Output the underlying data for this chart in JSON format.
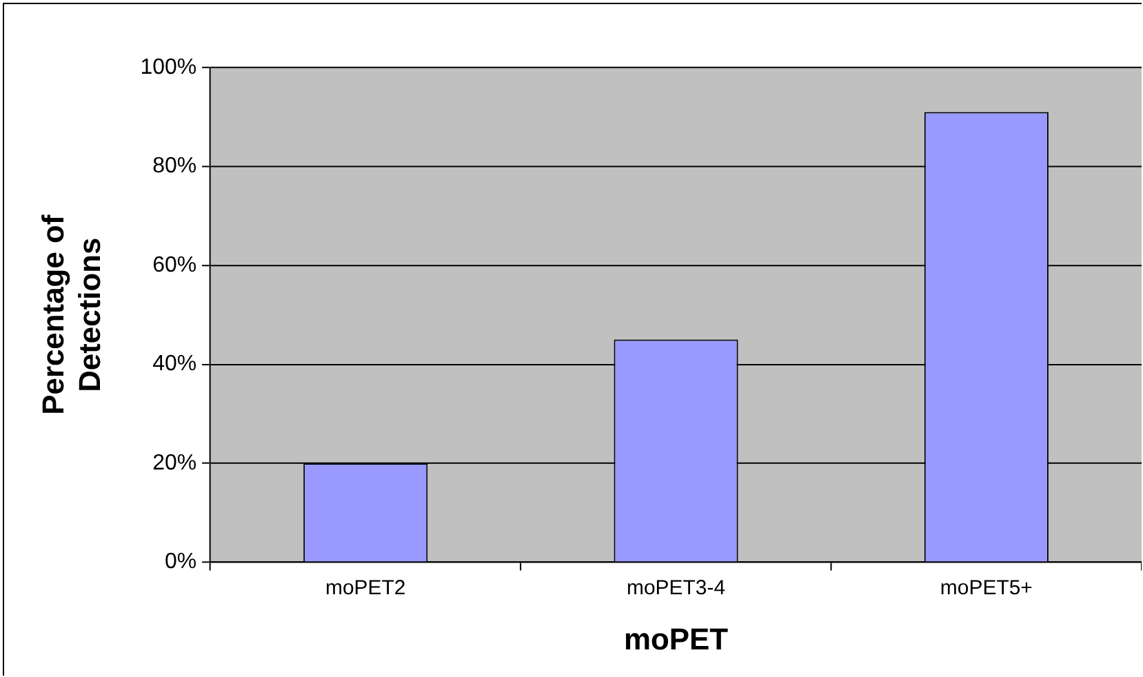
{
  "chart_data": {
    "type": "bar",
    "xlabel": "moPET",
    "ylabel": "Percentage of Detections",
    "categories": [
      "moPET2",
      "moPET3-4",
      "moPET5+"
    ],
    "values": [
      20,
      45,
      91
    ],
    "color": "#9999ff",
    "ylim": [
      0,
      100
    ],
    "yticks": [
      {
        "value": 0,
        "label": "0%"
      },
      {
        "value": 20,
        "label": "20%"
      },
      {
        "value": 40,
        "label": "40%"
      },
      {
        "value": 60,
        "label": "60%"
      },
      {
        "value": 80,
        "label": "80%"
      },
      {
        "value": 100,
        "label": "100%"
      }
    ],
    "grid": "y",
    "legend": false
  }
}
